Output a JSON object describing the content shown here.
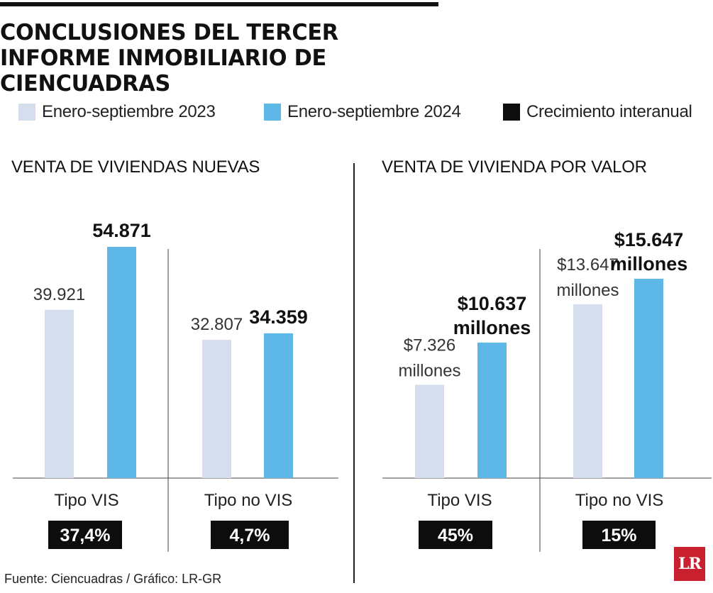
{
  "title": "CONCLUSIONES DEL TERCER INFORME INMOBILIARIO DE CIENCUADRAS",
  "legend": [
    {
      "label": "Enero-septiembre 2023",
      "color": "#d5deed"
    },
    {
      "label": "Enero-septiembre 2024",
      "color": "#5db8e8"
    },
    {
      "label": "Crecimiento interanual",
      "color": "#0d0d0d"
    }
  ],
  "chart_data": [
    {
      "type": "bar",
      "title": "VENTA DE VIVIENDAS NUEVAS",
      "categories": [
        "Tipo VIS",
        "Tipo no VIS"
      ],
      "series": [
        {
          "name": "Enero-septiembre 2023",
          "values": [
            39921,
            32807
          ],
          "labels": [
            "39.921",
            "32.807"
          ]
        },
        {
          "name": "Enero-septiembre 2024",
          "values": [
            54871,
            34359
          ],
          "labels": [
            "54.871",
            "34.359"
          ]
        }
      ],
      "growth": [
        "37,4%",
        "4,7%"
      ],
      "ylim": [
        0,
        54871
      ]
    },
    {
      "type": "bar",
      "title": "VENTA DE VIVIENDA POR VALOR",
      "categories": [
        "Tipo VIS",
        "Tipo no VIS"
      ],
      "series": [
        {
          "name": "Enero-septiembre 2023",
          "values": [
            7326,
            13647
          ],
          "labels": [
            "$7.326",
            "$13.647"
          ]
        },
        {
          "name": "Enero-septiembre 2024",
          "values": [
            10637,
            15647
          ],
          "labels": [
            "$10.637",
            "$15.647"
          ]
        }
      ],
      "value_unit": "millones",
      "growth": [
        "45%",
        "15%"
      ],
      "ylim": [
        0,
        15647
      ]
    }
  ],
  "source": "Fuente: Ciencuadras / Gráfico: LR-GR",
  "logo_text": "LR"
}
